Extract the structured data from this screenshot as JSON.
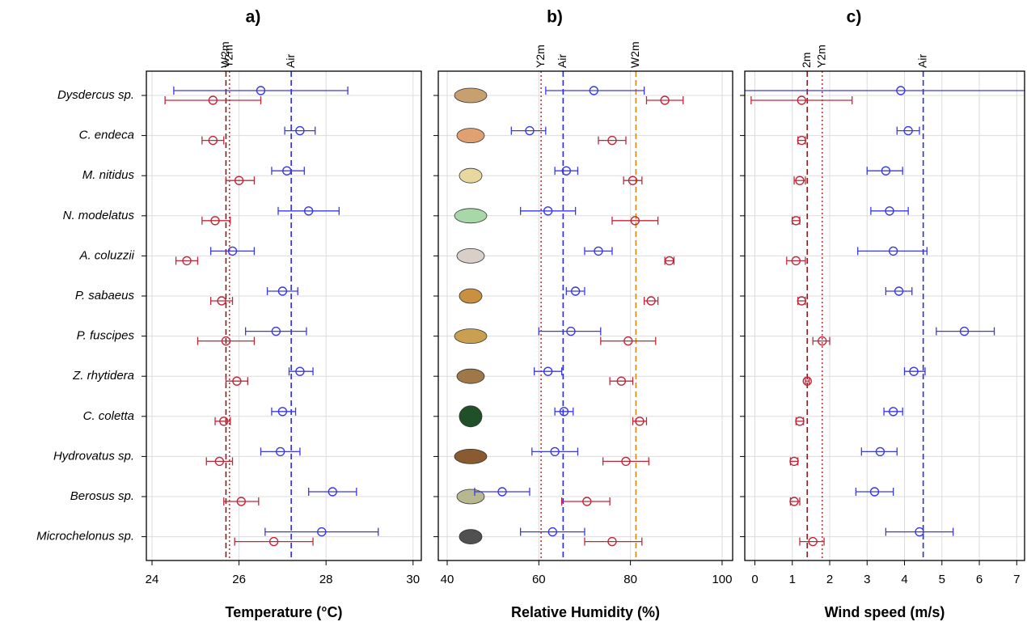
{
  "chart_data": [
    {
      "type": "errorbar",
      "panel_label": "a)",
      "xlabel": "Temperature (°C)",
      "categories": [
        "Dysdercus sp.",
        "C. endeca",
        "M. nitidus",
        "N. modelatus",
        "A. coluzzii",
        "P. sabaeus",
        "P. fuscipes",
        "Z. rhytidera",
        "C. coletta",
        "Hydrovatus sp.",
        "Berosus sp.",
        "Microchelonus sp."
      ],
      "xlim": [
        23.87,
        30.19
      ],
      "xticks": [
        24,
        26,
        28,
        30
      ],
      "grid": true,
      "series": [
        {
          "color": "#3a3ae0",
          "values": [
            26.5,
            27.4,
            27.1,
            27.6,
            25.85,
            27.0,
            26.85,
            27.4,
            27.0,
            26.95,
            28.15,
            27.9
          ],
          "lower": [
            24.5,
            27.05,
            26.75,
            26.9,
            25.35,
            26.65,
            26.15,
            27.15,
            26.75,
            26.5,
            27.6,
            26.6
          ],
          "upper": [
            28.5,
            27.75,
            27.5,
            28.3,
            26.35,
            27.35,
            27.55,
            27.7,
            27.3,
            27.4,
            28.7,
            29.2
          ]
        },
        {
          "color": "#c0283a",
          "values": [
            25.4,
            25.4,
            26.0,
            25.45,
            24.8,
            25.6,
            25.7,
            25.95,
            25.65,
            25.55,
            26.05,
            26.8
          ],
          "lower": [
            24.3,
            25.15,
            25.7,
            25.15,
            24.55,
            25.35,
            25.05,
            25.7,
            25.45,
            25.25,
            25.65,
            25.9
          ],
          "upper": [
            26.5,
            25.65,
            26.35,
            25.8,
            25.05,
            25.85,
            26.35,
            26.2,
            25.8,
            25.85,
            26.45,
            27.7
          ]
        }
      ],
      "vlines": [
        {
          "label": "W2m",
          "value": 25.7,
          "color": "#8b1a1a",
          "style": "dashed"
        },
        {
          "label": "Y2m",
          "value": 25.78,
          "color": "#d03030",
          "style": "dotted"
        },
        {
          "label": "Air",
          "value": 27.2,
          "color": "#2a2aee",
          "style": "dashed"
        }
      ]
    },
    {
      "type": "errorbar",
      "panel_label": "b)",
      "xlabel": "Relative Humidity (%)",
      "xlim": [
        38.06,
        102.3
      ],
      "xticks": [
        40,
        60,
        80,
        100
      ],
      "grid": true,
      "series": [
        {
          "color": "#3a3ae0",
          "values": [
            72,
            58,
            66,
            62,
            73,
            68,
            67,
            62,
            65.5,
            63.5,
            52,
            63
          ],
          "lower": [
            61.5,
            54,
            63.5,
            56,
            70,
            66,
            60,
            59,
            63.5,
            58.5,
            46,
            56
          ],
          "upper": [
            83,
            61.5,
            68.5,
            68,
            76,
            70,
            73.5,
            65,
            67.5,
            68.5,
            58,
            70
          ]
        },
        {
          "color": "#c0283a",
          "values": [
            87.5,
            76,
            80.5,
            81,
            88.5,
            84.5,
            79.5,
            78,
            82,
            79,
            70.5,
            76
          ],
          "lower": [
            83.5,
            73,
            78.5,
            76,
            87.5,
            83,
            73.5,
            75.5,
            80.5,
            74,
            65,
            70
          ],
          "upper": [
            91.5,
            79,
            82.5,
            86,
            89.5,
            86,
            85.5,
            80.5,
            83.5,
            84,
            75.5,
            82.5
          ]
        }
      ],
      "vlines": [
        {
          "label": "Y2m",
          "value": 60.5,
          "color": "#d03030",
          "style": "dotted"
        },
        {
          "label": "Air",
          "value": 65.3,
          "color": "#2a2aee",
          "style": "dashed"
        },
        {
          "label": "W2m",
          "value": 81.2,
          "color": "#d08a10",
          "style": "dashed"
        }
      ]
    },
    {
      "type": "errorbar",
      "panel_label": "c)",
      "xlabel": "Wind speed (m/s)",
      "xlim": [
        -0.27,
        7.21
      ],
      "xticks": [
        0,
        1,
        2,
        3,
        4,
        5,
        6,
        7
      ],
      "grid": true,
      "series": [
        {
          "color": "#3a3ae0",
          "values": [
            3.9,
            4.1,
            3.5,
            3.6,
            3.7,
            3.85,
            5.6,
            4.25,
            3.7,
            3.35,
            3.2,
            4.4
          ],
          "lower": [
            -0.5,
            3.8,
            3.0,
            3.1,
            2.75,
            3.5,
            4.85,
            4.0,
            3.45,
            2.85,
            2.7,
            3.5
          ],
          "upper": [
            8.3,
            4.4,
            3.95,
            4.1,
            4.6,
            4.2,
            6.4,
            4.55,
            3.95,
            3.8,
            3.7,
            5.3
          ]
        },
        {
          "color": "#c0283a",
          "values": [
            1.25,
            1.25,
            1.2,
            1.1,
            1.1,
            1.25,
            1.8,
            1.4,
            1.2,
            1.05,
            1.05,
            1.55
          ],
          "lower": [
            -0.1,
            1.15,
            1.05,
            1.0,
            0.85,
            1.15,
            1.55,
            1.35,
            1.1,
            0.95,
            0.95,
            1.2
          ],
          "upper": [
            2.6,
            1.35,
            1.35,
            1.2,
            1.35,
            1.35,
            2.0,
            1.45,
            1.3,
            1.15,
            1.2,
            1.85
          ]
        }
      ],
      "vlines": [
        {
          "label": "2m",
          "value": 1.4,
          "color": "#8b1a1a",
          "style": "dashed"
        },
        {
          "label": "Y2m",
          "value": 1.8,
          "color": "#d03030",
          "style": "dotted"
        },
        {
          "label": "Air",
          "value": 4.5,
          "color": "#2a2aee",
          "style": "dashed"
        }
      ]
    }
  ]
}
